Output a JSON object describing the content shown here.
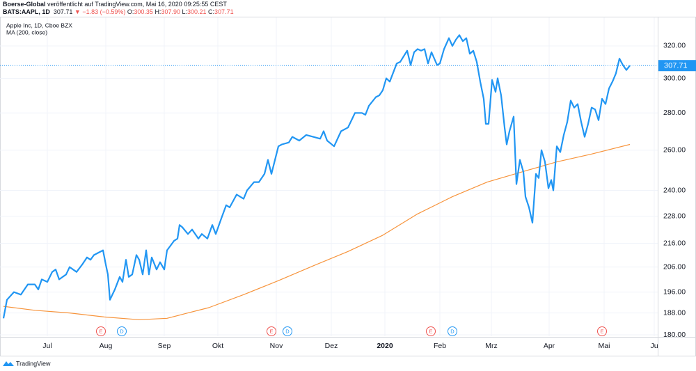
{
  "header": {
    "publisher": "Boerse-Global",
    "published": "veröffentlicht auf TradingView.com, Mai 16, 2020 09:25:55 CEST",
    "symbol": "BATS:AAPL, 1D",
    "last": "307.71",
    "change": "▼ −1.83 (−0.59%)",
    "o_label": "O:",
    "open": "300.35",
    "h_label": "H:",
    "high": "307.90",
    "l_label": "L:",
    "low": "300.21",
    "c_label": "C:",
    "close": "307.71"
  },
  "footer": {
    "brand": "TradingView"
  },
  "chart_data": {
    "type": "line",
    "log_scale": true,
    "grid": true,
    "legend": [
      "Apple Inc, 1D, Cboe BZX",
      "MA (200, close)"
    ],
    "ylim": [
      179.5,
      338.7
    ],
    "yticks": [
      {
        "value": 180,
        "label": "180.00"
      },
      {
        "value": 188,
        "label": "188.00"
      },
      {
        "value": 196,
        "label": "196.00"
      },
      {
        "value": 206,
        "label": "206.00"
      },
      {
        "value": 216,
        "label": "216.00"
      },
      {
        "value": 228,
        "label": "228.00"
      },
      {
        "value": 240,
        "label": "240.00"
      },
      {
        "value": 260,
        "label": "260.00"
      },
      {
        "value": 280,
        "label": "280.00"
      },
      {
        "value": 300,
        "label": "300.00"
      },
      {
        "value": 320,
        "label": "320.00"
      }
    ],
    "xlim": [
      0,
      188
    ],
    "xticks": [
      {
        "value": 12.6,
        "label": "Jul"
      },
      {
        "value": 29.4,
        "label": "Aug"
      },
      {
        "value": 46.2,
        "label": "Sep"
      },
      {
        "value": 61.6,
        "label": "Okt"
      },
      {
        "value": 78.4,
        "label": "Nov"
      },
      {
        "value": 94.2,
        "label": "Dez"
      },
      {
        "value": 109.6,
        "label": "2020"
      },
      {
        "value": 125.4,
        "label": "Feb"
      },
      {
        "value": 140.2,
        "label": "Mrz"
      },
      {
        "value": 156.8,
        "label": "Apr"
      },
      {
        "value": 172.6,
        "label": "Mai"
      },
      {
        "value": 187,
        "label": "Ju"
      }
    ],
    "series": [
      {
        "name": "Apple Inc, 1D, Cboe BZX",
        "color": "#2196f3",
        "x": [
          0,
          1,
          3,
          5,
          7,
          9,
          10,
          11,
          12.6,
          14,
          15,
          16,
          18,
          19,
          20,
          21,
          22.6,
          24,
          25,
          26,
          28.6,
          29.4,
          30,
          30.6,
          32,
          33.4,
          34.2,
          35.2,
          36,
          37,
          38.2,
          39,
          40,
          41,
          41.8,
          42.6,
          44,
          45,
          46.2,
          47,
          49,
          50,
          50.6,
          51.4,
          53,
          54.2,
          56,
          57,
          58.6,
          60,
          61,
          62.6,
          64,
          65,
          67,
          68,
          69,
          70,
          72,
          73.4,
          75,
          76,
          77,
          79,
          80,
          82,
          83,
          85,
          87,
          89,
          91,
          92,
          93,
          95,
          97,
          99,
          101,
          103,
          104,
          105,
          107,
          108,
          109,
          110,
          111,
          113,
          114,
          116,
          117,
          118,
          119,
          120,
          121,
          122,
          123,
          124.6,
          125.4,
          126.6,
          128,
          129,
          130,
          131,
          132,
          133,
          134,
          135,
          136,
          137,
          138,
          138.6,
          139.4,
          140.4,
          141.4,
          142,
          143,
          144,
          144.6,
          145.4,
          146.6,
          147.4,
          148.4,
          149.4,
          150,
          151,
          152,
          153,
          153.8,
          154.6,
          155.6,
          156.6,
          157.4,
          158,
          159,
          160,
          161,
          162,
          163,
          164,
          165,
          166,
          167,
          168,
          169,
          170,
          171,
          172,
          173,
          174,
          175,
          176,
          177,
          178,
          179,
          180
        ],
        "values": [
          186,
          193,
          196,
          195,
          199,
          199,
          197,
          201,
          200,
          204,
          205,
          201,
          203,
          206,
          205,
          204,
          207,
          210,
          209,
          211,
          213,
          207,
          203,
          193,
          197,
          202,
          200,
          209,
          202,
          203,
          211,
          209,
          203,
          213,
          203,
          210,
          205,
          208,
          205,
          213,
          217,
          218,
          224,
          223,
          220,
          222,
          218,
          220,
          218,
          224,
          220,
          227,
          233,
          232,
          238,
          237,
          236,
          240,
          244,
          244,
          248,
          255,
          248,
          262,
          263,
          264,
          267,
          265,
          268,
          267,
          266,
          270,
          265,
          262,
          270,
          272,
          280,
          280,
          279,
          284,
          289,
          290,
          293,
          300,
          298,
          309,
          310,
          317,
          308,
          316,
          318,
          317,
          318,
          309,
          316,
          308,
          309,
          318,
          325,
          320,
          324,
          327,
          323,
          325,
          315,
          317,
          310,
          298,
          288,
          274,
          274,
          299,
          292,
          300,
          290,
          272,
          263,
          270,
          278,
          243,
          255,
          249,
          237,
          232,
          225,
          248,
          246,
          260,
          254,
          241,
          245,
          240,
          262,
          259,
          268,
          275,
          287,
          283,
          285,
          275,
          267,
          274,
          283,
          282,
          276,
          288,
          285,
          294,
          298,
          303,
          312,
          308,
          305,
          307.71
        ]
      },
      {
        "name": "MA (200, close)",
        "color": "#f7943c",
        "x": [
          0,
          9,
          19,
          29,
          39,
          47,
          53,
          59,
          69,
          79,
          89,
          99,
          109,
          119,
          129,
          139,
          149,
          159,
          169,
          180
        ],
        "values": [
          190.5,
          189,
          188,
          186.5,
          185.5,
          186,
          188,
          190,
          195,
          200.5,
          206.5,
          212.5,
          219.5,
          229,
          237,
          244,
          249,
          254,
          258,
          263
        ]
      }
    ],
    "events": [
      {
        "label": "E",
        "x": 28,
        "color": "#ef5350"
      },
      {
        "label": "D",
        "x": 34,
        "color": "#2196f3"
      },
      {
        "label": "E",
        "x": 77,
        "color": "#ef5350"
      },
      {
        "label": "D",
        "x": 81.6,
        "color": "#2196f3"
      },
      {
        "label": "E",
        "x": 122.8,
        "color": "#ef5350"
      },
      {
        "label": "D",
        "x": 129,
        "color": "#2196f3"
      },
      {
        "label": "E",
        "x": 172,
        "color": "#ef5350"
      }
    ]
  }
}
